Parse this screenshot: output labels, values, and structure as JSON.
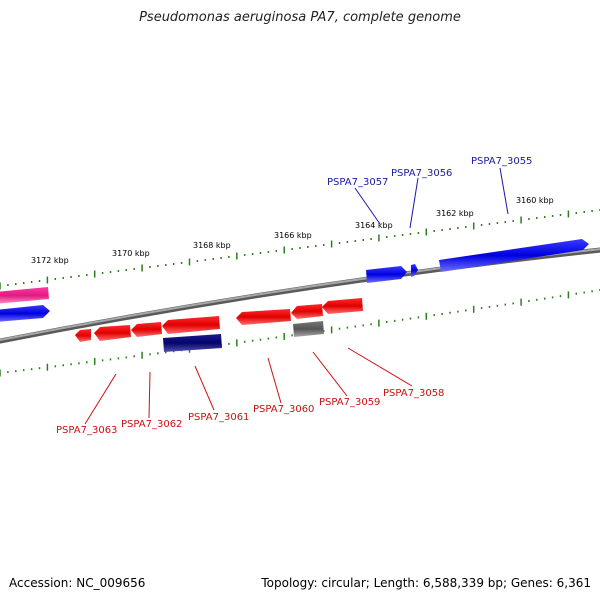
{
  "title": "Pseudomonas aeruginosa PA7, complete genome",
  "footer": {
    "accession": "Accession: NC_009656",
    "summary": "Topology: circular; Length: 6,588,339 bp; Genes: 6,361"
  },
  "colors": {
    "backbone": "#888888",
    "tick": "#2e7d1f",
    "forward_gene": "#1010e8",
    "reverse_gene": "#e01010",
    "pink_gene": "#e8208a",
    "navy_gene": "#0a0a78",
    "gray_gene": "#666666",
    "forward_label": "#1a1aa8",
    "reverse_label": "#cc1111"
  },
  "kbp_labels": [
    "3172 kbp",
    "3170 kbp",
    "3168 kbp",
    "3166 kbp",
    "3164 kbp",
    "3162 kbp",
    "3160 kbp"
  ],
  "forward_genes": [
    "PSPA7_3057",
    "PSPA7_3056",
    "PSPA7_3055"
  ],
  "reverse_genes": [
    "PSPA7_3063",
    "PSPA7_3062",
    "PSPA7_3061",
    "PSPA7_3060",
    "PSPA7_3059",
    "PSPA7_3058"
  ]
}
